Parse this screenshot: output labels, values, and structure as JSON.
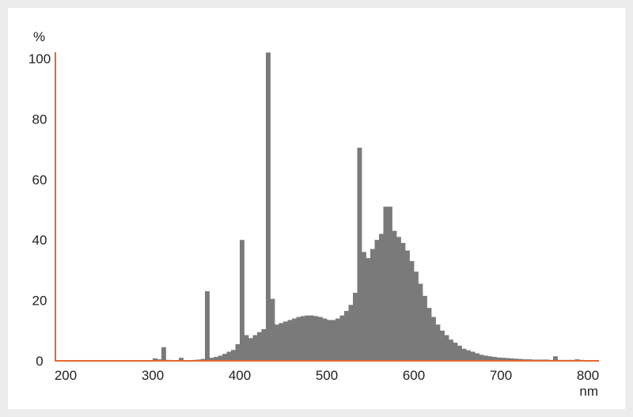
{
  "chart_data": {
    "type": "bar",
    "title": "",
    "xlabel": "nm",
    "ylabel": "%",
    "xlim": [
      190,
      810
    ],
    "ylim": [
      0,
      100
    ],
    "x_ticks": [
      200,
      300,
      400,
      500,
      600,
      700,
      800
    ],
    "y_ticks": [
      0,
      20,
      40,
      60,
      80,
      100
    ],
    "grid": false,
    "legend": "none",
    "bin_width_nm": 5,
    "colors": {
      "bars": "#7a7a7a",
      "axes": "#e8662f",
      "text": "#222222",
      "background": "#ffffff"
    },
    "series": [
      {
        "points": [
          [
            300,
            0.8
          ],
          [
            305,
            0.5
          ],
          [
            310,
            4.5
          ],
          [
            315,
            0.3
          ],
          [
            330,
            1.0
          ],
          [
            335,
            0.2
          ],
          [
            340,
            0.2
          ],
          [
            345,
            0.3
          ],
          [
            350,
            0.4
          ],
          [
            355,
            0.6
          ],
          [
            360,
            23.0
          ],
          [
            365,
            1.0
          ],
          [
            370,
            1.3
          ],
          [
            375,
            1.7
          ],
          [
            380,
            2.3
          ],
          [
            385,
            3.0
          ],
          [
            390,
            3.6
          ],
          [
            395,
            5.5
          ],
          [
            400,
            40.0
          ],
          [
            405,
            8.5
          ],
          [
            410,
            7.5
          ],
          [
            415,
            8.5
          ],
          [
            420,
            9.5
          ],
          [
            425,
            10.5
          ],
          [
            430,
            102.0
          ],
          [
            435,
            20.5
          ],
          [
            440,
            12.0
          ],
          [
            445,
            12.5
          ],
          [
            450,
            13.0
          ],
          [
            455,
            13.5
          ],
          [
            460,
            14.0
          ],
          [
            465,
            14.5
          ],
          [
            470,
            14.8
          ],
          [
            475,
            15.0
          ],
          [
            480,
            15.0
          ],
          [
            485,
            14.8
          ],
          [
            490,
            14.5
          ],
          [
            495,
            14.0
          ],
          [
            500,
            13.5
          ],
          [
            505,
            13.5
          ],
          [
            510,
            14.0
          ],
          [
            515,
            15.0
          ],
          [
            520,
            16.5
          ],
          [
            525,
            18.5
          ],
          [
            530,
            22.5
          ],
          [
            535,
            70.5
          ],
          [
            540,
            36.0
          ],
          [
            545,
            34.0
          ],
          [
            550,
            37.0
          ],
          [
            555,
            40.0
          ],
          [
            560,
            42.0
          ],
          [
            565,
            51.0
          ],
          [
            570,
            51.0
          ],
          [
            575,
            43.0
          ],
          [
            580,
            41.0
          ],
          [
            585,
            39.0
          ],
          [
            590,
            36.5
          ],
          [
            595,
            33.0
          ],
          [
            600,
            29.5
          ],
          [
            605,
            25.5
          ],
          [
            610,
            21.5
          ],
          [
            615,
            17.5
          ],
          [
            620,
            14.5
          ],
          [
            625,
            12.0
          ],
          [
            630,
            10.0
          ],
          [
            635,
            8.5
          ],
          [
            640,
            7.0
          ],
          [
            645,
            6.0
          ],
          [
            650,
            5.0
          ],
          [
            655,
            4.0
          ],
          [
            660,
            3.5
          ],
          [
            665,
            3.0
          ],
          [
            670,
            2.5
          ],
          [
            675,
            2.0
          ],
          [
            680,
            1.7
          ],
          [
            685,
            1.5
          ],
          [
            690,
            1.3
          ],
          [
            695,
            1.1
          ],
          [
            700,
            1.0
          ],
          [
            705,
            0.9
          ],
          [
            710,
            0.8
          ],
          [
            715,
            0.7
          ],
          [
            720,
            0.6
          ],
          [
            725,
            0.5
          ],
          [
            730,
            0.5
          ],
          [
            735,
            0.4
          ],
          [
            740,
            0.4
          ],
          [
            745,
            0.4
          ],
          [
            750,
            0.4
          ],
          [
            755,
            0.3
          ],
          [
            760,
            1.5
          ],
          [
            765,
            0.3
          ],
          [
            770,
            0.3
          ],
          [
            775,
            0.3
          ],
          [
            780,
            0.3
          ],
          [
            785,
            0.5
          ],
          [
            790,
            0.3
          ],
          [
            795,
            0.2
          ],
          [
            800,
            0.2
          ]
        ]
      }
    ]
  }
}
